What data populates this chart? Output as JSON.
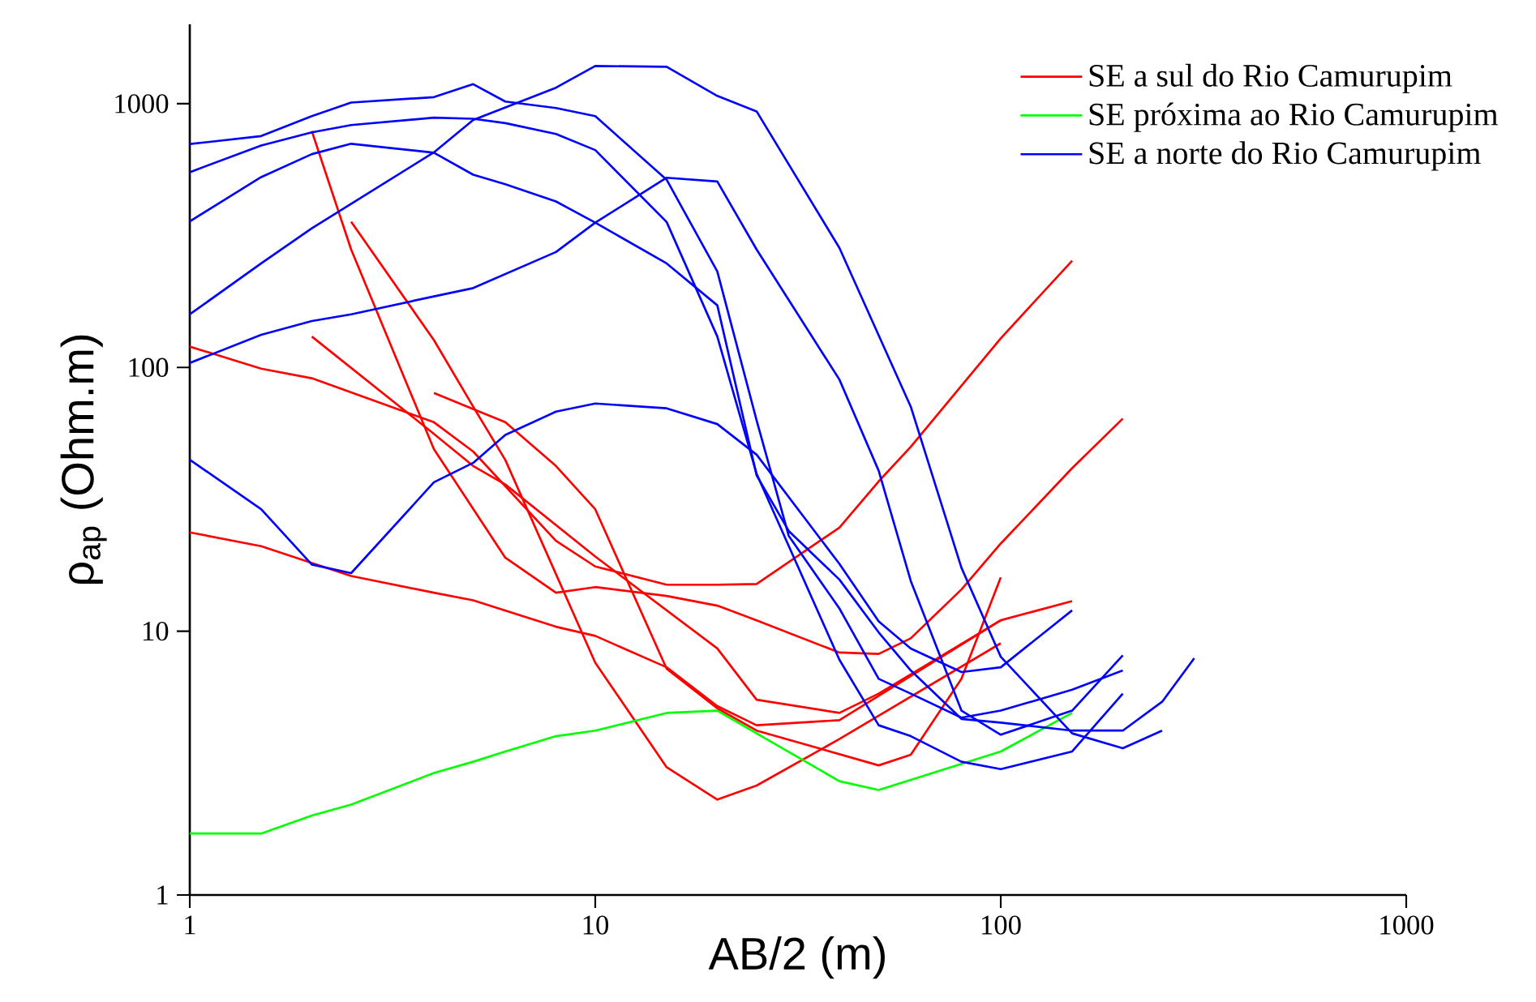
{
  "chart_data": {
    "type": "line",
    "xlabel": "AB/2 (m)",
    "ylabel": "ρ$_{ap}$ (Ohm.m)",
    "log": "xy",
    "grid": false,
    "legend": "top right",
    "marker": "none",
    "line_style": "solid",
    "xlim": [
      1,
      1000
    ],
    "ylim": [
      1,
      2000
    ],
    "xticks": [
      1,
      10,
      100,
      1000
    ],
    "yticks": [
      1,
      10,
      100,
      1000
    ],
    "series": [
      {
        "name": "SE a sul do Rio Camurupim",
        "color": "#ff0000",
        "x": [
          1,
          1.5,
          2,
          4,
          5,
          8,
          10,
          15,
          20,
          25,
          40,
          50,
          60,
          100,
          150
        ],
        "values": [
          120,
          99,
          91,
          62,
          48,
          22,
          17.6,
          15,
          15,
          15.1,
          24.7,
          37,
          50,
          129,
          254
        ]
      },
      {
        "color": "#ff0000",
        "x": [
          1,
          1.5,
          2.5,
          4,
          5,
          8,
          10,
          15,
          20,
          25,
          40,
          100
        ],
        "values": [
          23.7,
          21,
          16.2,
          14,
          13.1,
          10.4,
          9.6,
          7.3,
          5.2,
          4.4,
          4.6,
          11
        ]
      },
      {
        "color": "#ff0000",
        "x": [
          2,
          4,
          5,
          6,
          10,
          20,
          25,
          40,
          50,
          100,
          150
        ],
        "values": [
          131,
          56,
          42.3,
          36,
          19.2,
          8.6,
          5.5,
          4.9,
          5.8,
          11,
          13
        ]
      },
      {
        "color": "#ff0000",
        "x": [
          2,
          2.5,
          4,
          6,
          8,
          10,
          15,
          20,
          25,
          40,
          50,
          60,
          80,
          100,
          150,
          200
        ],
        "values": [
          787,
          280,
          49,
          19,
          14,
          14.7,
          13.6,
          12.5,
          11,
          8.3,
          8.2,
          9.4,
          14.4,
          21.5,
          41.5,
          64
        ]
      },
      {
        "color": "#ff0000",
        "x": [
          2.5,
          4,
          5,
          6,
          10,
          15,
          20,
          25,
          40,
          100
        ],
        "values": [
          357,
          127,
          71,
          44.6,
          7.6,
          3.05,
          2.3,
          2.6,
          3.9,
          9
        ]
      },
      {
        "color": "#ff0000",
        "x": [
          4,
          6,
          8,
          10,
          15,
          20,
          25,
          50,
          60,
          80,
          100
        ],
        "values": [
          80,
          62,
          42.3,
          29,
          7.2,
          5.1,
          4.2,
          3.1,
          3.4,
          6.6,
          16
        ]
      },
      {
        "name": "SE próxima ao Rio Camurupim",
        "color": "#00ff00",
        "x": [
          1,
          1.5,
          2,
          2.5,
          4,
          5,
          6,
          8,
          10,
          15,
          20,
          40,
          50,
          100,
          150
        ],
        "values": [
          1.71,
          1.71,
          2.0,
          2.2,
          2.9,
          3.2,
          3.5,
          4.0,
          4.2,
          4.9,
          5.0,
          2.7,
          2.5,
          3.5,
          4.9
        ]
      },
      {
        "name": "SE a norte do Rio Camurupim",
        "color": "#0000ff",
        "x": [
          1,
          1.5,
          2,
          4,
          5,
          8,
          10,
          15,
          20,
          25,
          40,
          60,
          80,
          100,
          150,
          200,
          250
        ],
        "values": [
          159,
          248,
          337,
          654,
          867,
          1150,
          1390,
          1380,
          1070,
          935,
          284,
          71,
          17.4,
          8,
          4.1,
          3.6,
          4.2
        ]
      },
      {
        "color": "#0000ff",
        "x": [
          1,
          1.5,
          2,
          2.5,
          4,
          5,
          8,
          10,
          15,
          20,
          25,
          40,
          50,
          60,
          80,
          100,
          150,
          200
        ],
        "values": [
          104,
          133,
          150,
          159,
          186,
          200,
          274,
          354,
          524,
          507,
          280,
          90,
          40.6,
          15.5,
          5.0,
          4.05,
          5.0,
          8.1
        ]
      },
      {
        "color": "#0000ff",
        "x": [
          1,
          1.5,
          2,
          2.5,
          4,
          5,
          6,
          8,
          10,
          15,
          20,
          25,
          30,
          40,
          50,
          60,
          80,
          100,
          150,
          200
        ],
        "values": [
          703,
          754,
          897,
          1010,
          1059,
          1186,
          1019,
          963,
          897,
          515,
          231,
          63,
          23,
          12.2,
          6.6,
          5.8,
          4.7,
          5.0,
          6.0,
          7.1
        ]
      },
      {
        "color": "#0000ff",
        "x": [
          1,
          1.5,
          2,
          2.5,
          4,
          5,
          6,
          8,
          10,
          15,
          20,
          25,
          40,
          50,
          60,
          80,
          100,
          150,
          200
        ],
        "values": [
          550,
          694,
          779,
          830,
          885,
          877,
          844,
          768,
          667,
          356,
          131,
          39.5,
          7.8,
          4.4,
          4.0,
          3.2,
          3.0,
          3.5,
          5.8
        ]
      },
      {
        "color": "#0000ff",
        "x": [
          1,
          1.5,
          2,
          2.5,
          4,
          5,
          6,
          8,
          10,
          15,
          20,
          25,
          30,
          40,
          50,
          60,
          80,
          100,
          150,
          200,
          250,
          300
        ],
        "values": [
          358,
          527,
          644,
          705,
          652,
          538,
          495,
          426,
          354,
          248,
          172,
          39,
          24,
          15.7,
          9.9,
          7.1,
          4.65,
          4.5,
          4.2,
          4.2,
          5.4,
          7.9
        ]
      },
      {
        "color": "#0000ff",
        "x": [
          1,
          1.5,
          2,
          2.5,
          4,
          5,
          6,
          8,
          10,
          15,
          20,
          25,
          40,
          50,
          60,
          80,
          100,
          150
        ],
        "values": [
          44.7,
          29,
          17.9,
          16.6,
          36.7,
          43.5,
          55.5,
          68,
          73,
          70,
          61,
          46.7,
          18,
          10.9,
          8.6,
          7.0,
          7.3,
          12
        ]
      }
    ]
  }
}
